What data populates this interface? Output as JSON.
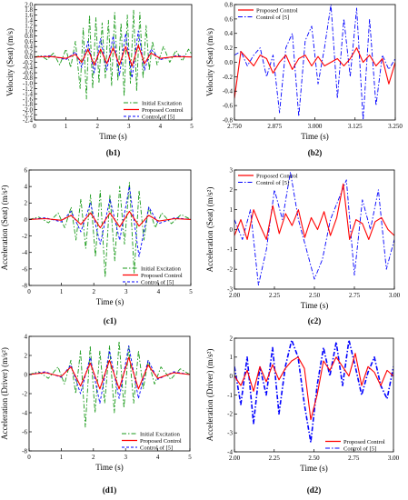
{
  "figure": {
    "legend_labels": {
      "initial": "Initial Excitation",
      "proposed": "Proposed Control",
      "control5": "Control of [5]"
    },
    "colors": {
      "initial": "#1a9a1a",
      "proposed": "#ff0000",
      "control5": "#0000ff"
    }
  },
  "chart_data": [
    {
      "id": "b1",
      "panel_label": "(b1)",
      "type": "line",
      "xlabel": "Time (s)",
      "ylabel": "Velocity (Seat) (m/s)",
      "xlim": [
        0,
        5
      ],
      "ylim": [
        -2.4,
        2.0
      ],
      "xticks": [
        0,
        1,
        2,
        3,
        4,
        5
      ],
      "xtick_labels": [
        "0",
        "1",
        "2",
        "3",
        "4",
        "5"
      ],
      "yticks": [
        -2.4,
        -2.2,
        -2.0,
        -1.8,
        -1.6,
        -1.4,
        -1.2,
        -1.0,
        -0.8,
        -0.6,
        -0.4,
        -0.2,
        0.0,
        0.2,
        0.4,
        0.6,
        0.8,
        1.0,
        1.2,
        1.4,
        1.6,
        1.8,
        2.0
      ],
      "ytick_labels": [
        "-2.4",
        "-2.2",
        "-2.0",
        "-1.8",
        "-1.6",
        "-1.4",
        "-1.2",
        "-1.0",
        "-0.8",
        "-0.6",
        "-0.4",
        "-0.2",
        "0.0",
        "0.2",
        "0.4",
        "0.6",
        "0.8",
        "1.0",
        "1.2",
        "1.4",
        "1.6",
        "1.8",
        "2.0"
      ],
      "legend": [
        "initial",
        "proposed",
        "control5"
      ],
      "legend_position": "bottom-right",
      "series": [
        {
          "key": "initial",
          "style": "dashdot",
          "x": [
            0,
            0.2,
            0.4,
            0.6,
            0.8,
            1,
            1.15,
            1.3,
            1.45,
            1.55,
            1.65,
            1.75,
            1.85,
            1.95,
            2.05,
            2.15,
            2.25,
            2.35,
            2.45,
            2.55,
            2.65,
            2.75,
            2.85,
            2.95,
            3.05,
            3.15,
            3.25,
            3.35,
            3.45,
            3.55,
            3.65,
            3.75,
            3.9,
            4.1,
            4.3,
            4.5,
            4.7,
            4.9,
            5
          ],
          "y": [
            0,
            0.05,
            -0.1,
            0.15,
            -0.3,
            0.3,
            -0.4,
            0.6,
            -1.2,
            1.1,
            -1.6,
            1.6,
            -1.2,
            1.5,
            -1.0,
            1.3,
            -0.8,
            1.4,
            -1.1,
            1.7,
            -0.9,
            1.3,
            -1.5,
            1.6,
            -1.0,
            1.8,
            -1.3,
            1.7,
            -0.8,
            1.2,
            -0.5,
            0.6,
            -0.3,
            0.4,
            -0.2,
            0.25,
            -0.15,
            0.3,
            0.1
          ]
        },
        {
          "key": "control5",
          "style": "dash",
          "x": [
            0,
            0.5,
            1,
            1.3,
            1.5,
            1.7,
            1.9,
            2.1,
            2.3,
            2.5,
            2.7,
            2.9,
            3.1,
            3.3,
            3.5,
            3.7,
            4,
            4.5,
            5
          ],
          "y": [
            0,
            0.05,
            -0.1,
            0.2,
            -0.4,
            0.6,
            -0.6,
            0.7,
            -0.5,
            0.8,
            -0.7,
            0.9,
            -0.8,
            1.0,
            -0.5,
            0.3,
            -0.1,
            0.05,
            0
          ]
        },
        {
          "key": "proposed",
          "style": "solid",
          "x": [
            0,
            0.5,
            1,
            1.3,
            1.5,
            1.7,
            1.9,
            2.1,
            2.3,
            2.5,
            2.7,
            2.9,
            3.1,
            3.3,
            3.5,
            3.7,
            4,
            4.5,
            5
          ],
          "y": [
            0,
            0.02,
            -0.05,
            0.1,
            -0.2,
            0.3,
            -0.3,
            0.3,
            -0.25,
            0.35,
            -0.3,
            0.4,
            -0.35,
            0.45,
            -0.25,
            0.15,
            -0.05,
            0.02,
            0
          ]
        }
      ]
    },
    {
      "id": "b2",
      "panel_label": "(b2)",
      "type": "line",
      "xlabel": "Time (s)",
      "ylabel": "Velocity (Seat) (m/s)",
      "xlim": [
        2.75,
        3.25
      ],
      "ylim": [
        -0.8,
        0.8
      ],
      "xticks": [
        2.75,
        2.875,
        3.0,
        3.125,
        3.25
      ],
      "xtick_labels": [
        "2.750",
        "2.875",
        "3.000",
        "3.125",
        "3.250"
      ],
      "yticks": [
        -0.8,
        -0.6,
        -0.4,
        -0.2,
        0.0,
        0.2,
        0.4,
        0.6,
        0.8
      ],
      "ytick_labels": [
        "-0.8",
        "-0.6",
        "-0.4",
        "-0.2",
        "0.0",
        "0.2",
        "0.4",
        "0.6",
        "0.8"
      ],
      "legend": [
        "proposed",
        "control5"
      ],
      "legend_position": "top-left",
      "series": [
        {
          "key": "control5",
          "style": "dashdot",
          "x": [
            2.75,
            2.77,
            2.79,
            2.81,
            2.83,
            2.85,
            2.87,
            2.89,
            2.91,
            2.93,
            2.95,
            2.97,
            2.99,
            3.01,
            3.03,
            3.05,
            3.07,
            3.09,
            3.11,
            3.13,
            3.15,
            3.17,
            3.19,
            3.21,
            3.23,
            3.25
          ],
          "y": [
            0.1,
            0.15,
            -0.05,
            0.1,
            0.2,
            -0.2,
            0.1,
            -0.7,
            0.2,
            0.4,
            -0.75,
            0.3,
            0.5,
            -0.3,
            0.2,
            0.8,
            -0.5,
            0.6,
            -0.2,
            0.75,
            -0.8,
            0.6,
            -0.6,
            0.1,
            -0.1,
            0.05
          ]
        },
        {
          "key": "proposed",
          "style": "solid",
          "x": [
            2.75,
            2.77,
            2.79,
            2.81,
            2.83,
            2.85,
            2.87,
            2.89,
            2.91,
            2.93,
            2.95,
            2.97,
            2.99,
            3.01,
            3.03,
            3.05,
            3.07,
            3.09,
            3.11,
            3.13,
            3.15,
            3.17,
            3.19,
            3.21,
            3.23,
            3.25
          ],
          "y": [
            -0.5,
            0.15,
            0.05,
            -0.05,
            0.1,
            0.05,
            -0.15,
            0.0,
            0.1,
            -0.1,
            0.05,
            0.1,
            -0.05,
            0.08,
            -0.05,
            0.0,
            0.05,
            -0.05,
            0.05,
            0.2,
            0.0,
            0.1,
            -0.05,
            0.05,
            -0.3,
            0.0
          ]
        }
      ]
    },
    {
      "id": "c1",
      "panel_label": "(c1)",
      "type": "line",
      "xlabel": "Time (s)",
      "ylabel": "Acceleration (Seat) (m/s²)",
      "xlim": [
        0,
        5
      ],
      "ylim": [
        -8,
        6
      ],
      "xticks": [
        0,
        1,
        2,
        3,
        4,
        5
      ],
      "xtick_labels": [
        "0",
        "1",
        "2",
        "3",
        "4",
        "5"
      ],
      "yticks": [
        -8,
        -6,
        -4,
        -2,
        0,
        2,
        4,
        6
      ],
      "ytick_labels": [
        "-8",
        "-6",
        "-4",
        "-2",
        "0",
        "2",
        "4",
        "6"
      ],
      "legend": [
        "initial",
        "proposed",
        "control5"
      ],
      "legend_position": "bottom-right",
      "series": [
        {
          "key": "initial",
          "style": "dashdot",
          "x": [
            0,
            0.3,
            0.6,
            0.9,
            1.1,
            1.3,
            1.45,
            1.6,
            1.75,
            1.9,
            2.05,
            2.2,
            2.35,
            2.5,
            2.65,
            2.8,
            2.95,
            3.1,
            3.25,
            3.4,
            3.55,
            3.7,
            3.9,
            4.1,
            4.4,
            4.7,
            5
          ],
          "y": [
            0,
            0.3,
            -0.4,
            0.8,
            -1.0,
            1.5,
            -2.5,
            2.5,
            -3.5,
            3.0,
            -4.5,
            3.5,
            -7.0,
            3.0,
            -5.0,
            4.0,
            -3.0,
            4.5,
            -6.5,
            3.5,
            -2.5,
            1.5,
            -1.0,
            0.8,
            -0.5,
            0.6,
            0
          ]
        },
        {
          "key": "control5",
          "style": "dash",
          "x": [
            0,
            0.5,
            1,
            1.3,
            1.6,
            1.9,
            2.2,
            2.5,
            2.8,
            3.1,
            3.4,
            3.7,
            4,
            4.5,
            5
          ],
          "y": [
            0,
            0.2,
            -0.3,
            1.0,
            -1.5,
            2.0,
            -3.0,
            2.5,
            -2.5,
            4.0,
            -4.5,
            1.5,
            -0.5,
            0.2,
            0
          ]
        },
        {
          "key": "proposed",
          "style": "solid",
          "x": [
            0,
            0.5,
            1,
            1.3,
            1.6,
            1.9,
            2.2,
            2.5,
            2.8,
            3.1,
            3.4,
            3.7,
            4,
            4.5,
            5
          ],
          "y": [
            0,
            0.1,
            -0.1,
            0.5,
            -0.6,
            0.8,
            -1.0,
            0.8,
            -0.9,
            1.0,
            -0.8,
            0.5,
            -0.2,
            0.1,
            0
          ]
        }
      ]
    },
    {
      "id": "c2",
      "panel_label": "(c2)",
      "type": "line",
      "xlabel": "Time (s)",
      "ylabel": "Acceleration (Seat) (m/s²)",
      "xlim": [
        2.0,
        3.0
      ],
      "ylim": [
        -3,
        3
      ],
      "xticks": [
        2.0,
        2.25,
        2.5,
        2.75,
        3.0
      ],
      "xtick_labels": [
        "2.00",
        "2.25",
        "2.50",
        "2.75",
        "3.00"
      ],
      "yticks": [
        -3,
        -2,
        -1,
        0,
        1,
        2,
        3
      ],
      "ytick_labels": [
        "-3",
        "-2",
        "-1",
        "0",
        "1",
        "2",
        "3"
      ],
      "legend": [
        "proposed",
        "control5"
      ],
      "legend_position": "top-left",
      "series": [
        {
          "key": "control5",
          "style": "dashdot",
          "x": [
            2.0,
            2.05,
            2.1,
            2.15,
            2.2,
            2.25,
            2.3,
            2.35,
            2.4,
            2.45,
            2.5,
            2.55,
            2.6,
            2.65,
            2.7,
            2.75,
            2.8,
            2.85,
            2.9,
            2.95,
            3.0
          ],
          "y": [
            0.5,
            -0.5,
            1.0,
            -2.8,
            -1.0,
            2.0,
            0.5,
            2.9,
            0.5,
            -1.0,
            -2.5,
            -1.5,
            0.5,
            1.5,
            2.5,
            -2.3,
            1.5,
            0.0,
            2.0,
            -2.0,
            -0.5
          ]
        },
        {
          "key": "proposed",
          "style": "solid",
          "x": [
            2.0,
            2.04,
            2.08,
            2.12,
            2.16,
            2.2,
            2.24,
            2.28,
            2.32,
            2.36,
            2.4,
            2.44,
            2.48,
            2.52,
            2.56,
            2.6,
            2.64,
            2.68,
            2.72,
            2.76,
            2.8,
            2.84,
            2.88,
            2.92,
            2.96,
            3.0
          ],
          "y": [
            -0.3,
            0.5,
            -0.5,
            1.0,
            0.2,
            -0.5,
            1.2,
            -0.2,
            0.8,
            0.2,
            1.0,
            -0.4,
            0.6,
            0.0,
            0.9,
            -0.3,
            0.6,
            2.3,
            -0.5,
            0.5,
            0.3,
            -0.5,
            0.4,
            0.6,
            0.0,
            -0.3
          ]
        }
      ]
    },
    {
      "id": "d1",
      "panel_label": "(d1)",
      "type": "line",
      "xlabel": "Time (s)",
      "ylabel": "Acceleration (Driver) (m/s²)",
      "xlim": [
        0,
        5
      ],
      "ylim": [
        -8,
        4
      ],
      "xticks": [
        0,
        1,
        2,
        3,
        4,
        5
      ],
      "xtick_labels": [
        "0",
        "1",
        "2",
        "3",
        "4",
        "5"
      ],
      "yticks": [
        -8,
        -6,
        -4,
        -2,
        0,
        2,
        4
      ],
      "ytick_labels": [
        "-8",
        "-6",
        "-4",
        "-2",
        "0",
        "2",
        "4"
      ],
      "legend": [
        "initial",
        "proposed",
        "control5"
      ],
      "legend_position": "bottom-right",
      "series": [
        {
          "key": "initial",
          "style": "dashdot",
          "x": [
            0,
            0.3,
            0.6,
            0.9,
            1.1,
            1.3,
            1.45,
            1.6,
            1.75,
            1.9,
            2.05,
            2.2,
            2.35,
            2.5,
            2.65,
            2.8,
            2.95,
            3.1,
            3.25,
            3.4,
            3.55,
            3.7,
            3.9,
            4.1,
            4.4,
            4.7,
            5
          ],
          "y": [
            0,
            0.3,
            -0.4,
            0.8,
            -1.0,
            1.5,
            -2.0,
            2.5,
            -5.5,
            3.0,
            -4.0,
            2.5,
            -3.0,
            3.0,
            -4.0,
            3.5,
            -3.5,
            3.0,
            -3.0,
            2.5,
            -1.5,
            1.5,
            -1.0,
            0.8,
            -0.5,
            0.6,
            0
          ]
        },
        {
          "key": "control5",
          "style": "dash",
          "x": [
            0,
            0.5,
            1,
            1.3,
            1.6,
            1.9,
            2.2,
            2.5,
            2.8,
            3.1,
            3.4,
            3.7,
            4,
            4.5,
            5
          ],
          "y": [
            0,
            0.3,
            -0.3,
            1.0,
            -2.0,
            1.8,
            -3.0,
            2.5,
            -2.5,
            3.0,
            -2.5,
            1.5,
            -0.5,
            0.3,
            0
          ]
        },
        {
          "key": "proposed",
          "style": "solid",
          "x": [
            0,
            0.5,
            1,
            1.3,
            1.6,
            1.9,
            2.2,
            2.5,
            2.8,
            3.1,
            3.4,
            3.7,
            4,
            4.5,
            5
          ],
          "y": [
            0,
            0.2,
            -0.2,
            0.8,
            -1.2,
            1.2,
            -1.5,
            1.5,
            -1.5,
            1.8,
            -1.5,
            1.0,
            -0.4,
            0.2,
            0
          ]
        }
      ]
    },
    {
      "id": "d2",
      "panel_label": "(d2)",
      "type": "line",
      "xlabel": "Time (s)",
      "ylabel": "Acceleration (Driver) (m/s²)",
      "xlim": [
        2.0,
        3.0
      ],
      "ylim": [
        -4,
        2
      ],
      "xticks": [
        2.0,
        2.25,
        2.5,
        2.75,
        3.0
      ],
      "xtick_labels": [
        "2.00",
        "2.25",
        "2.50",
        "2.75",
        "3.00"
      ],
      "yticks": [
        -4,
        -3,
        -2,
        -1,
        0,
        1,
        2
      ],
      "ytick_labels": [
        "-4",
        "-3",
        "-2",
        "-1",
        "0",
        "1",
        "2"
      ],
      "legend": [
        "proposed",
        "control5"
      ],
      "legend_position": "bottom-right",
      "series": [
        {
          "key": "control5",
          "style": "dashdot",
          "thick": true,
          "x": [
            2.0,
            2.04,
            2.08,
            2.12,
            2.16,
            2.2,
            2.24,
            2.28,
            2.32,
            2.36,
            2.4,
            2.44,
            2.48,
            2.52,
            2.56,
            2.6,
            2.64,
            2.68,
            2.72,
            2.76,
            2.8,
            2.84,
            2.88,
            2.92,
            2.96,
            3.0
          ],
          "y": [
            0.5,
            -1.5,
            1.0,
            -2.5,
            0.5,
            -1.0,
            1.5,
            -2.0,
            0.5,
            1.9,
            1.0,
            -1.5,
            -3.5,
            -0.5,
            1.5,
            0.0,
            1.8,
            -0.5,
            1.9,
            0.5,
            -1.0,
            0.2,
            1.0,
            -0.5,
            -1.2,
            0.5
          ]
        },
        {
          "key": "proposed",
          "style": "solid",
          "x": [
            2.0,
            2.04,
            2.08,
            2.12,
            2.16,
            2.2,
            2.24,
            2.28,
            2.32,
            2.36,
            2.4,
            2.44,
            2.48,
            2.52,
            2.56,
            2.6,
            2.64,
            2.68,
            2.72,
            2.76,
            2.8,
            2.84,
            2.88,
            2.92,
            2.96,
            3.0
          ],
          "y": [
            0.0,
            -0.5,
            0.3,
            -0.8,
            0.5,
            -0.3,
            0.6,
            -0.2,
            0.4,
            0.8,
            1.0,
            0.4,
            -2.3,
            -1.0,
            0.8,
            0.3,
            1.0,
            0.5,
            0.0,
            1.2,
            -0.5,
            0.5,
            0.2,
            -0.5,
            0.3,
            0.0
          ]
        }
      ]
    }
  ]
}
